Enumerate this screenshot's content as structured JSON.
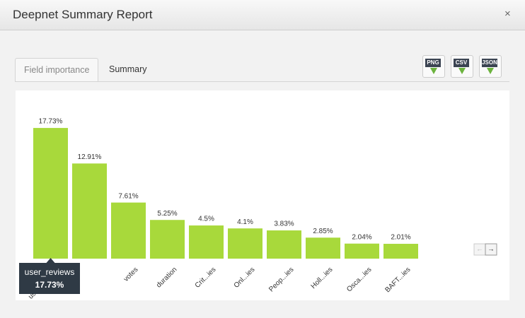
{
  "header": {
    "title": "Deepnet Summary Report",
    "close": "×"
  },
  "tabs": [
    "Field importance",
    "Summary"
  ],
  "export_buttons": [
    "PNG",
    "CSV",
    "JSON"
  ],
  "chart_data": {
    "type": "bar",
    "color": "#a8d93b",
    "categories": [
      "user_reviews",
      null,
      "votes",
      "duration",
      "Crit...ies",
      "Onl...ies",
      "Peop...ies",
      "Holl...ies",
      "Osca...ies",
      "BAFT...ies"
    ],
    "values": [
      17.73,
      12.91,
      7.61,
      5.25,
      4.5,
      4.1,
      3.83,
      2.85,
      2.04,
      2.01
    ],
    "value_labels": [
      "17.73%",
      "12.91%",
      "7.61%",
      "5.25%",
      "4.5%",
      "4.1%",
      "3.83%",
      "2.85%",
      "2.04%",
      "2.01%"
    ],
    "tooltip": {
      "category_index": 0
    }
  }
}
